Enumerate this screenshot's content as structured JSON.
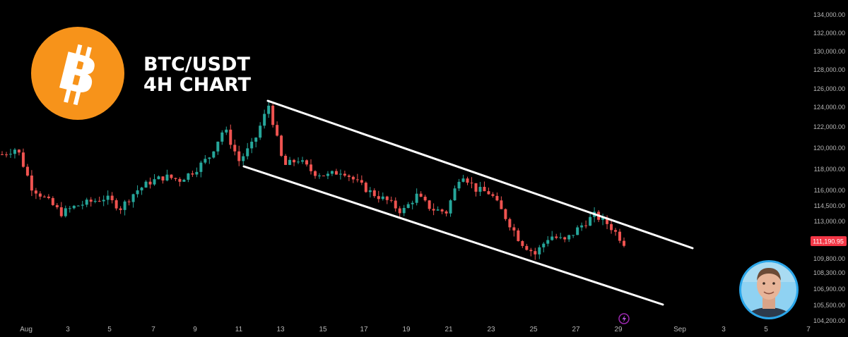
{
  "chart_data": {
    "type": "candlestick",
    "title_lines": [
      "BTC/USDT",
      "4H CHART"
    ],
    "y_ticks": [
      "134,000.00",
      "132,000.00",
      "130,000.00",
      "128,000.00",
      "126,000.00",
      "124,000.00",
      "122,000.00",
      "120,000.00",
      "118,000.00",
      "116,000.00",
      "114,500.00",
      "113,000.00",
      "109,800.00",
      "108,300.00",
      "106,900.00",
      "105,500.00",
      "104,200.00"
    ],
    "x_ticks": [
      "Aug",
      "3",
      "5",
      "7",
      "9",
      "11",
      "13",
      "15",
      "17",
      "19",
      "21",
      "23",
      "25",
      "27",
      "29",
      "Sep",
      "3",
      "5",
      "7"
    ],
    "last_price": 111190.95,
    "last_price_label": "111,190.95",
    "channel": {
      "upper": [
        {
          "x": "Aug 12",
          "y": 125000
        },
        {
          "x": "Sep 1",
          "y": 110600
        }
      ],
      "lower": [
        {
          "x": "Aug 11",
          "y": 118000
        },
        {
          "x": "Aug 31",
          "y": 105800
        }
      ]
    },
    "series_anchors": [
      [
        0,
        119.4
      ],
      [
        1,
        120.0
      ],
      [
        2,
        116.3
      ],
      [
        3,
        115.1
      ],
      [
        4,
        113.8
      ],
      [
        5,
        114.5
      ],
      [
        6,
        114.9
      ],
      [
        7,
        115.3
      ],
      [
        8,
        114.3
      ],
      [
        9,
        115.9
      ],
      [
        10,
        116.8
      ],
      [
        11,
        117.3
      ],
      [
        12,
        117.0
      ],
      [
        13,
        117.9
      ],
      [
        14,
        119.2
      ],
      [
        15,
        121.9
      ],
      [
        16,
        118.8
      ],
      [
        17,
        120.5
      ],
      [
        18,
        124.2
      ],
      [
        19,
        118.3
      ],
      [
        20,
        118.9
      ],
      [
        21,
        117.7
      ],
      [
        22,
        117.4
      ],
      [
        23,
        117.9
      ],
      [
        24,
        116.7
      ],
      [
        25,
        115.7
      ],
      [
        26,
        115.0
      ],
      [
        27,
        113.9
      ],
      [
        28,
        115.5
      ],
      [
        29,
        114.2
      ],
      [
        30,
        113.9
      ],
      [
        31,
        117.7
      ],
      [
        32,
        116.1
      ],
      [
        33,
        115.7
      ],
      [
        34,
        113.4
      ],
      [
        35,
        111.3
      ],
      [
        36,
        110.2
      ],
      [
        37,
        111.8
      ],
      [
        38,
        111.3
      ],
      [
        39,
        112.5
      ],
      [
        40,
        113.6
      ],
      [
        41,
        112.7
      ],
      [
        42,
        111.19
      ]
    ],
    "colors": {
      "up": "#26a69a",
      "down": "#ef5350",
      "channel": "#ffffff",
      "price_tag": "#f23645",
      "logo": "#f7931a",
      "avatar_ring": "#2aa6ea"
    }
  },
  "icons": [
    "bitcoin-logo",
    "avatar",
    "lightning-icon"
  ]
}
